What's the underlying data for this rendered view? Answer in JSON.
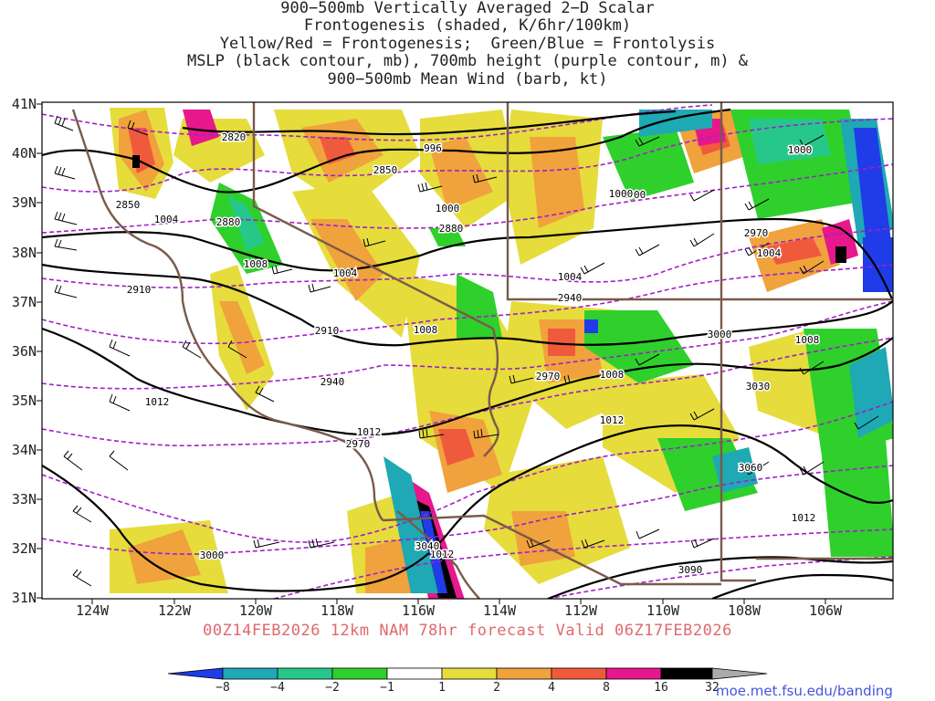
{
  "title": {
    "line1": "900−500mb Vertically Averaged 2−D Scalar",
    "line2": "Frontogenesis (shaded, K/6hr/100km)",
    "line3": "Yellow/Red = Frontogenesis;  Green/Blue = Frontolysis",
    "line4": "MSLP (black contour, mb), 700mb height (purple contour, m) &",
    "line5": "900−500mb Mean Wind (barb, kt)"
  },
  "lat_labels": [
    "41N",
    "40N",
    "39N",
    "38N",
    "37N",
    "36N",
    "35N",
    "34N",
    "33N",
    "32N",
    "31N"
  ],
  "lon_labels": [
    "124W",
    "122W",
    "120W",
    "118W",
    "116W",
    "114W",
    "112W",
    "110W",
    "108W",
    "106W"
  ],
  "valid_line": "00Z14FEB2026 12km NAM 78hr forecast Valid 06Z17FEB2026",
  "colorbar": {
    "ticks": [
      "−8",
      "−4",
      "−2",
      "−1",
      "1",
      "2",
      "4",
      "8",
      "16",
      "32"
    ],
    "colors": [
      "#1f3ce8",
      "#1ea9b4",
      "#26c88a",
      "#2fd02c",
      "#ffffff",
      "#e6dc3c",
      "#f0a23c",
      "#f05a3c",
      "#e6188c",
      "#000000",
      "#aaaaaa"
    ]
  },
  "mslp_labels": [
    "996",
    "1000",
    "1000",
    "1000",
    "1000",
    "1004",
    "1004",
    "1004",
    "1004",
    "1008",
    "1008",
    "1008",
    "1008",
    "1012",
    "1012",
    "1012",
    "1012",
    "1012"
  ],
  "height_labels": [
    "2820",
    "2850",
    "2850",
    "2880",
    "2880",
    "2910",
    "2910",
    "2940",
    "2940",
    "2970",
    "2970",
    "2970",
    "3000",
    "3000",
    "3030",
    "3060",
    "3090",
    "3040"
  ],
  "credit": "moe.met.fsu.edu/banding",
  "colors": {
    "mslp": "#000000",
    "height": "#a020c8",
    "border": "#7a5a4a",
    "valid_text": "#e0686c"
  }
}
